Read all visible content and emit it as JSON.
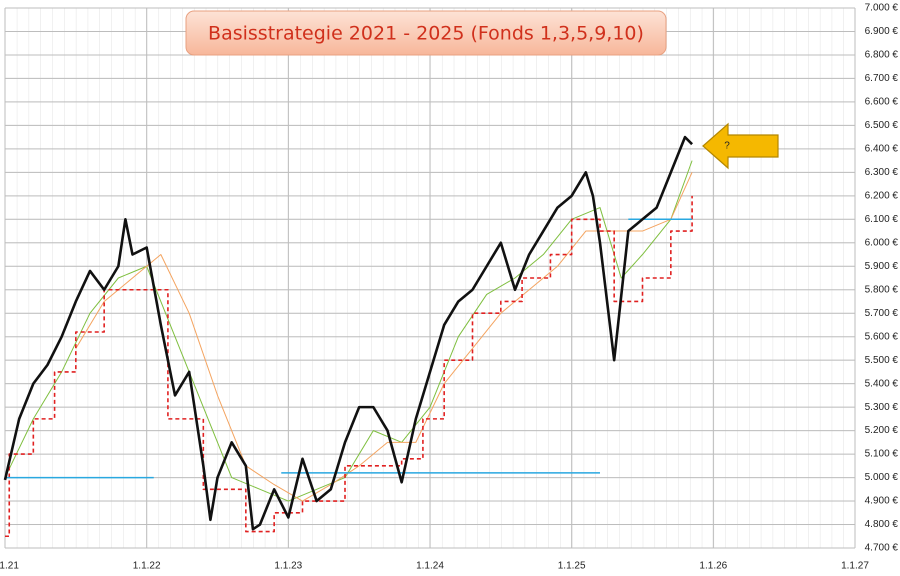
{
  "chart_data": {
    "type": "line",
    "title": "Basisstrategie 2021 - 2025 (Fonds 1,3,5,9,10)",
    "annotation": "?",
    "grid": true,
    "xlim": [
      2021,
      2027
    ],
    "xticks": [
      {
        "value": 2021,
        "label": "1.1.21"
      },
      {
        "value": 2022,
        "label": "1.1.22"
      },
      {
        "value": 2023,
        "label": "1.1.23"
      },
      {
        "value": 2024,
        "label": "1.1.24"
      },
      {
        "value": 2025,
        "label": "1.1.25"
      },
      {
        "value": 2026,
        "label": "1.1.26"
      },
      {
        "value": 2027,
        "label": "1.1.27"
      }
    ],
    "ylim": [
      4700,
      7000
    ],
    "yticks": [
      {
        "value": 4700,
        "label": "4.700 €"
      },
      {
        "value": 4800,
        "label": "4.800 €"
      },
      {
        "value": 4900,
        "label": "4.900 €"
      },
      {
        "value": 5000,
        "label": "5.000 €"
      },
      {
        "value": 5100,
        "label": "5.100 €"
      },
      {
        "value": 5200,
        "label": "5.200 €"
      },
      {
        "value": 5300,
        "label": "5.300 €"
      },
      {
        "value": 5400,
        "label": "5.400 €"
      },
      {
        "value": 5500,
        "label": "5.500 €"
      },
      {
        "value": 5600,
        "label": "5.600 €"
      },
      {
        "value": 5700,
        "label": "5.700 €"
      },
      {
        "value": 5800,
        "label": "5.800 €"
      },
      {
        "value": 5900,
        "label": "5.900 €"
      },
      {
        "value": 6000,
        "label": "6.000 €"
      },
      {
        "value": 6100,
        "label": "6.100 €"
      },
      {
        "value": 6200,
        "label": "6.200 €"
      },
      {
        "value": 6300,
        "label": "6.300 €"
      },
      {
        "value": 6400,
        "label": "6.400 €"
      },
      {
        "value": 6500,
        "label": "6.500 €"
      },
      {
        "value": 6600,
        "label": "6.600 €"
      },
      {
        "value": 6700,
        "label": "6.700 €"
      },
      {
        "value": 6800,
        "label": "6.800 €"
      },
      {
        "value": 6900,
        "label": "6.900 €"
      },
      {
        "value": 7000,
        "label": "7.000 €"
      }
    ],
    "series": [
      {
        "color": "#7fbf3f",
        "width": 1,
        "x": [
          2021.0,
          2021.2,
          2021.4,
          2021.6,
          2021.8,
          2022.0,
          2022.2,
          2022.4,
          2022.6,
          2022.8,
          2023.0,
          2023.2,
          2023.4,
          2023.6,
          2023.8,
          2024.0,
          2024.2,
          2024.4,
          2024.6,
          2024.8,
          2025.0,
          2025.2,
          2025.35,
          2025.5,
          2025.7,
          2025.85
        ],
        "values": [
          5000,
          5250,
          5450,
          5700,
          5850,
          5900,
          5600,
          5300,
          5000,
          4950,
          4900,
          4950,
          5000,
          5200,
          5150,
          5300,
          5600,
          5780,
          5850,
          5950,
          6100,
          6150,
          5850,
          5950,
          6100,
          6350
        ]
      },
      {
        "color": "#f4a460",
        "width": 1,
        "x": [
          2021.5,
          2021.7,
          2021.9,
          2022.1,
          2022.3,
          2022.5,
          2022.7,
          2022.9,
          2023.1,
          2023.3,
          2023.5,
          2023.7,
          2023.9,
          2024.1,
          2024.3,
          2024.5,
          2024.7,
          2024.9,
          2025.1,
          2025.3,
          2025.5,
          2025.7,
          2025.85
        ],
        "values": [
          5550,
          5750,
          5850,
          5950,
          5700,
          5350,
          5050,
          4970,
          4900,
          4970,
          5050,
          5150,
          5150,
          5400,
          5550,
          5700,
          5800,
          5900,
          6050,
          6050,
          6050,
          6100,
          6300
        ]
      },
      {
        "color": "#e02020",
        "width": 1.6,
        "dashed": true,
        "step": true,
        "x": [
          2021.0,
          2021.03,
          2021.2,
          2021.35,
          2021.5,
          2021.7,
          2022.15,
          2022.4,
          2022.7,
          2022.9,
          2023.1,
          2023.4,
          2023.8,
          2023.95,
          2024.1,
          2024.3,
          2024.5,
          2024.65,
          2024.85,
          2025.0,
          2025.2,
          2025.3,
          2025.5,
          2025.7,
          2025.85
        ],
        "values": [
          4750,
          5100,
          5250,
          5450,
          5620,
          5800,
          5250,
          4950,
          4770,
          4850,
          4900,
          5050,
          5080,
          5250,
          5500,
          5700,
          5750,
          5850,
          5950,
          6100,
          6050,
          5750,
          5850,
          6050,
          6200
        ]
      },
      {
        "color": "#29a8e0",
        "width": 1.5,
        "x": [
          2021.0,
          2022.05,
          null,
          2022.95,
          2025.2,
          null,
          2025.4,
          2025.85
        ],
        "values": [
          5000,
          5000,
          null,
          5020,
          5020,
          null,
          6100,
          6100
        ]
      },
      {
        "color": "#111111",
        "width": 2.6,
        "x": [
          2021.0,
          2021.1,
          2021.2,
          2021.3,
          2021.4,
          2021.5,
          2021.6,
          2021.7,
          2021.8,
          2021.85,
          2021.9,
          2022.0,
          2022.1,
          2022.2,
          2022.3,
          2022.4,
          2022.45,
          2022.5,
          2022.6,
          2022.7,
          2022.75,
          2022.8,
          2022.9,
          2023.0,
          2023.1,
          2023.2,
          2023.3,
          2023.4,
          2023.5,
          2023.6,
          2023.7,
          2023.8,
          2023.9,
          2024.0,
          2024.1,
          2024.2,
          2024.3,
          2024.4,
          2024.5,
          2024.6,
          2024.7,
          2024.8,
          2024.9,
          2025.0,
          2025.1,
          2025.15,
          2025.2,
          2025.3,
          2025.4,
          2025.5,
          2025.6,
          2025.7,
          2025.8,
          2025.85
        ],
        "values": [
          4990,
          5250,
          5400,
          5480,
          5600,
          5750,
          5880,
          5800,
          5900,
          6100,
          5950,
          5980,
          5650,
          5350,
          5450,
          5050,
          4820,
          5000,
          5150,
          5050,
          4780,
          4800,
          4950,
          4830,
          5080,
          4900,
          4950,
          5150,
          5300,
          5300,
          5200,
          4980,
          5250,
          5450,
          5650,
          5750,
          5800,
          5900,
          6000,
          5800,
          5950,
          6050,
          6150,
          6200,
          6300,
          6200,
          6000,
          5500,
          6050,
          6100,
          6150,
          6300,
          6450,
          6420
        ]
      }
    ]
  }
}
